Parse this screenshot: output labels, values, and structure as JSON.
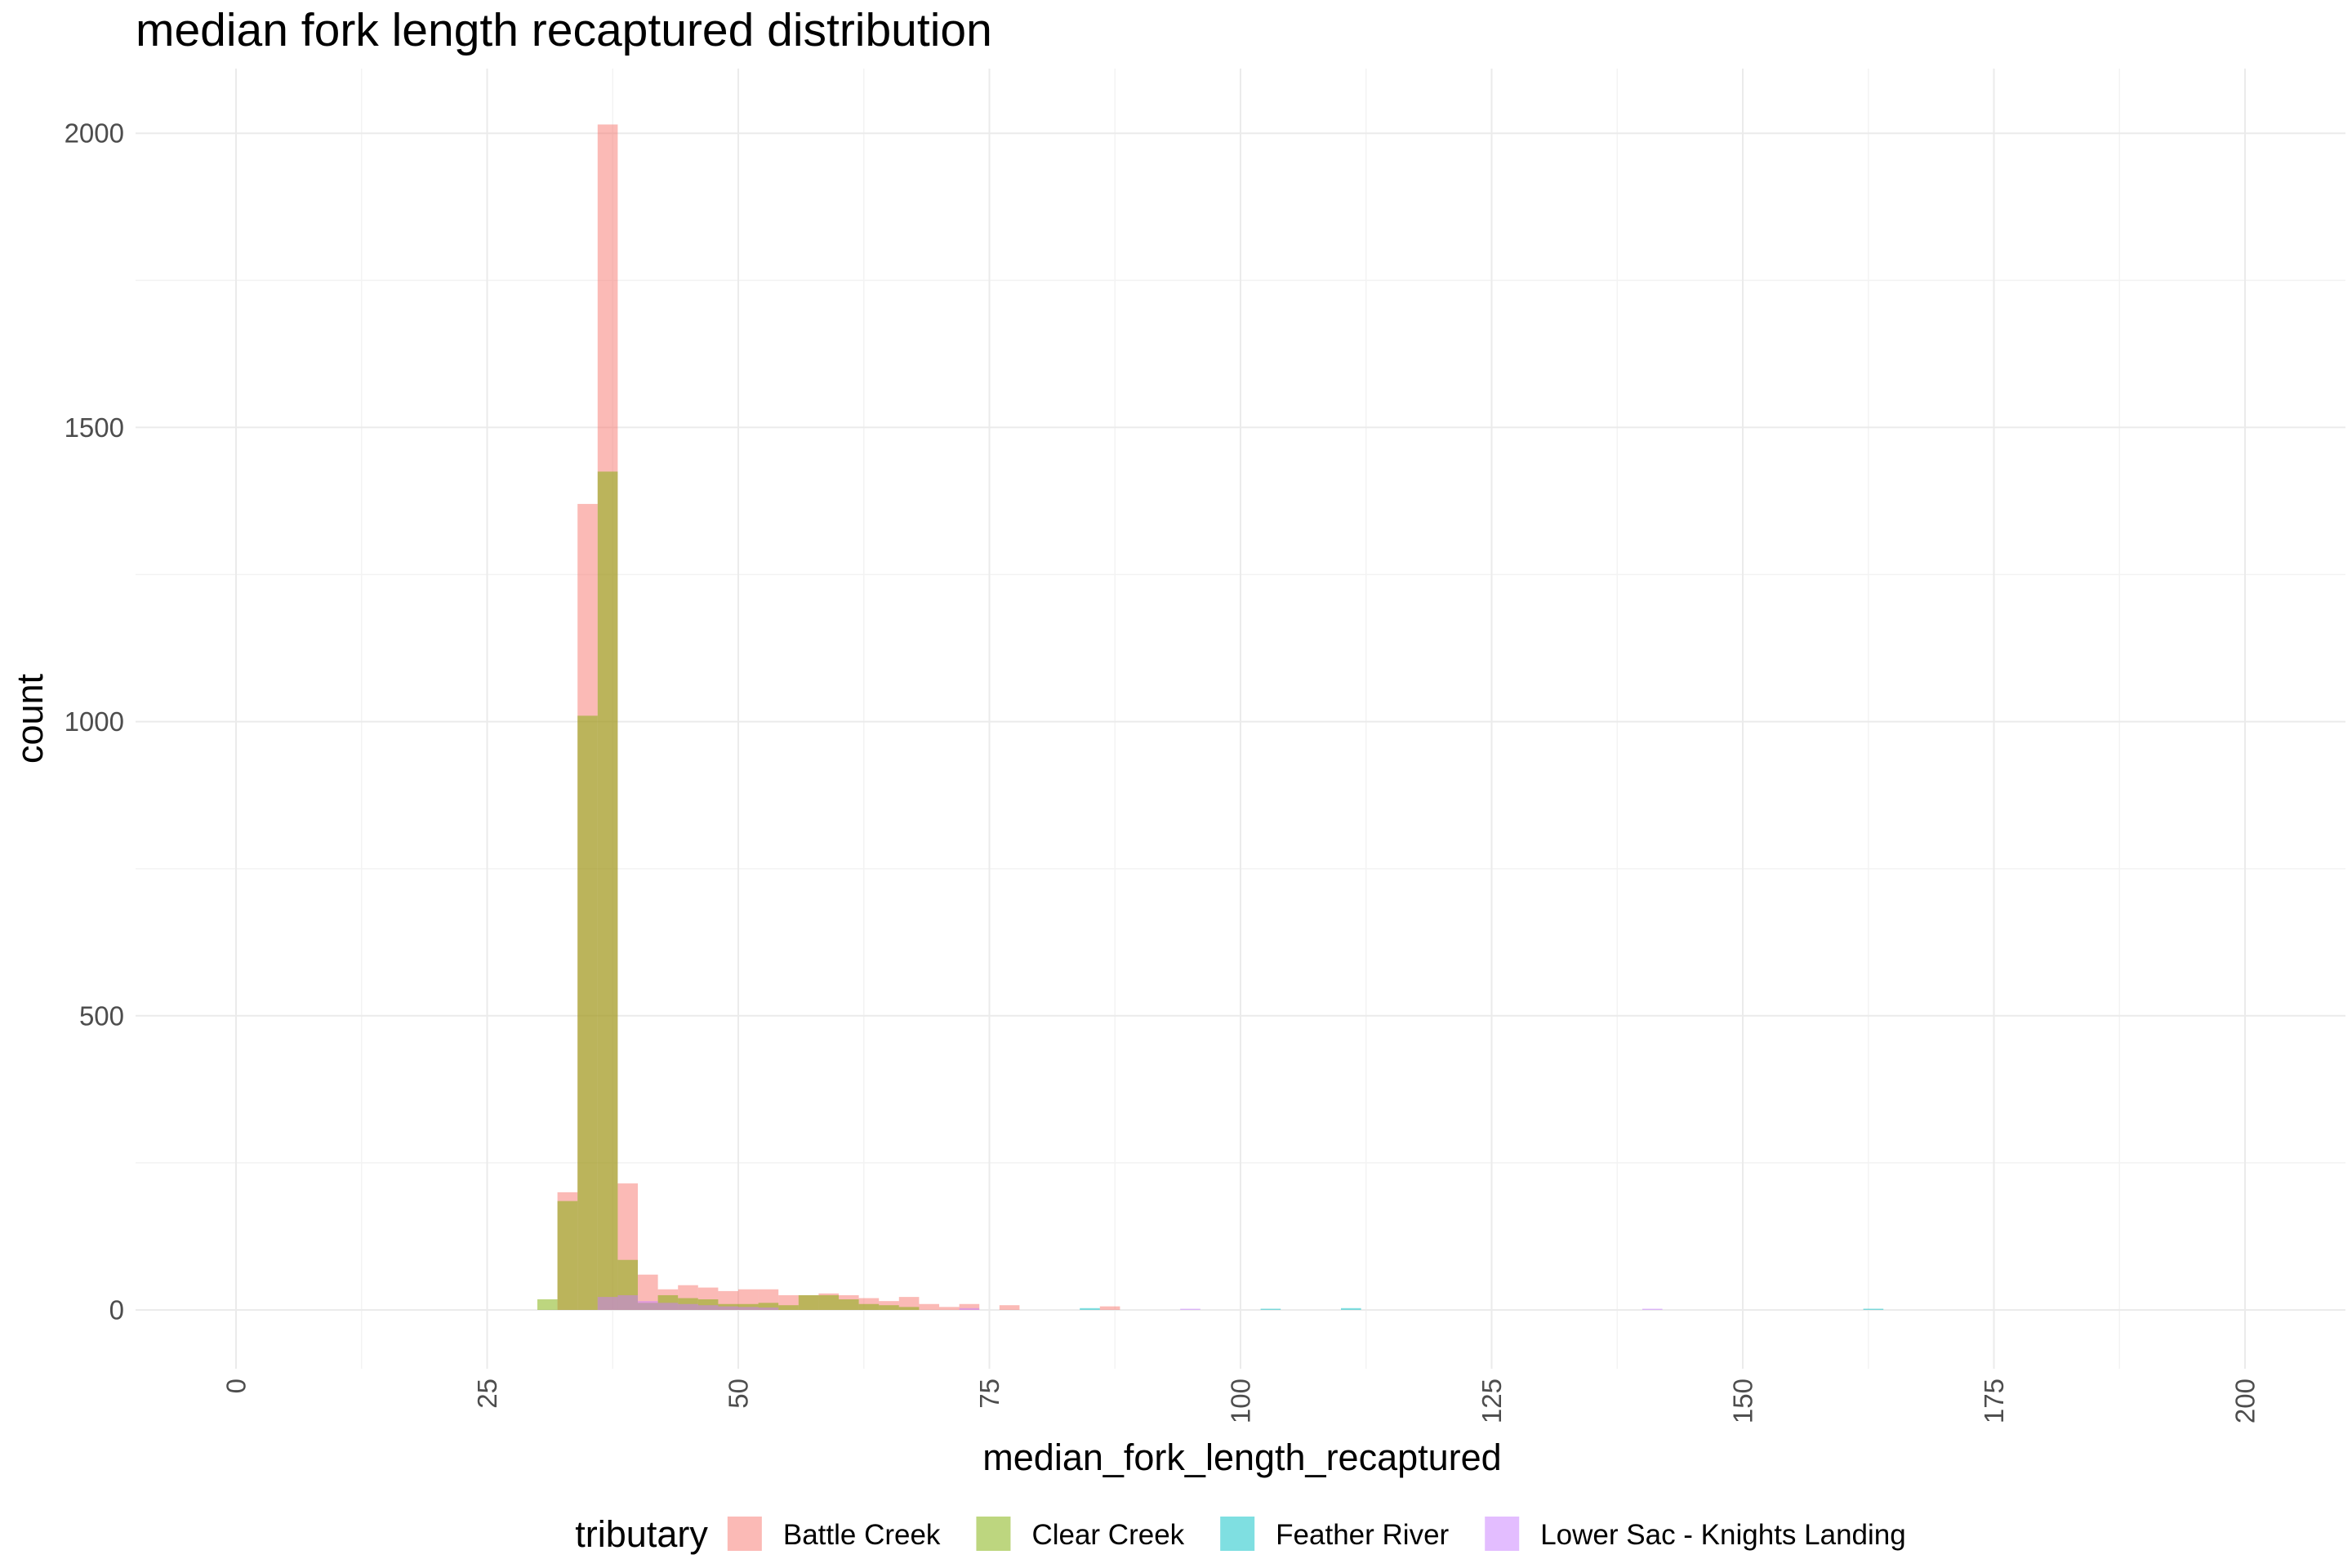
{
  "chart_data": {
    "type": "bar",
    "subtype": "histogram-overlay",
    "title": "median fork length recaptured distribution",
    "xlabel": "median_fork_length_recaptured",
    "ylabel": "count",
    "xlim": [
      -10,
      210
    ],
    "ylim": [
      -100,
      2110
    ],
    "x_ticks": [
      0,
      25,
      50,
      75,
      100,
      125,
      150,
      175,
      200
    ],
    "y_ticks": [
      0,
      500,
      1000,
      1500,
      2000
    ],
    "bin_width": 2,
    "grid": true,
    "legend": {
      "title": "tributary",
      "position": "bottom"
    },
    "series": [
      {
        "name": "Battle Creek",
        "color": "#F8766D",
        "bins": [
          [
            33,
            200
          ],
          [
            35,
            1370
          ],
          [
            37,
            2015
          ],
          [
            39,
            215
          ],
          [
            41,
            60
          ],
          [
            43,
            35
          ],
          [
            45,
            42
          ],
          [
            47,
            38
          ],
          [
            49,
            32
          ],
          [
            51,
            35
          ],
          [
            53,
            35
          ],
          [
            55,
            25
          ],
          [
            57,
            25
          ],
          [
            59,
            28
          ],
          [
            61,
            25
          ],
          [
            63,
            20
          ],
          [
            65,
            15
          ],
          [
            67,
            22
          ],
          [
            69,
            10
          ],
          [
            71,
            5
          ],
          [
            73,
            10
          ],
          [
            77,
            8
          ],
          [
            87,
            6
          ]
        ]
      },
      {
        "name": "Clear Creek",
        "color": "#7CAE00",
        "bins": [
          [
            31,
            18
          ],
          [
            33,
            185
          ],
          [
            35,
            1010
          ],
          [
            37,
            1425
          ],
          [
            39,
            85
          ],
          [
            41,
            12
          ],
          [
            43,
            25
          ],
          [
            45,
            20
          ],
          [
            47,
            18
          ],
          [
            49,
            10
          ],
          [
            51,
            10
          ],
          [
            53,
            12
          ],
          [
            55,
            8
          ],
          [
            57,
            25
          ],
          [
            59,
            25
          ],
          [
            61,
            18
          ],
          [
            63,
            10
          ],
          [
            65,
            8
          ],
          [
            67,
            5
          ]
        ]
      },
      {
        "name": "Feather River",
        "color": "#00BFC4",
        "bins": [
          [
            85,
            3
          ],
          [
            103,
            2
          ],
          [
            111,
            3
          ],
          [
            163,
            2
          ]
        ]
      },
      {
        "name": "Lower Sac - Knights Landing",
        "color": "#C77CFF",
        "bins": [
          [
            37,
            22
          ],
          [
            39,
            25
          ],
          [
            41,
            15
          ],
          [
            43,
            12
          ],
          [
            45,
            10
          ],
          [
            47,
            8
          ],
          [
            49,
            6
          ],
          [
            51,
            5
          ],
          [
            53,
            4
          ],
          [
            73,
            3
          ],
          [
            95,
            2
          ],
          [
            141,
            2
          ]
        ]
      }
    ]
  }
}
